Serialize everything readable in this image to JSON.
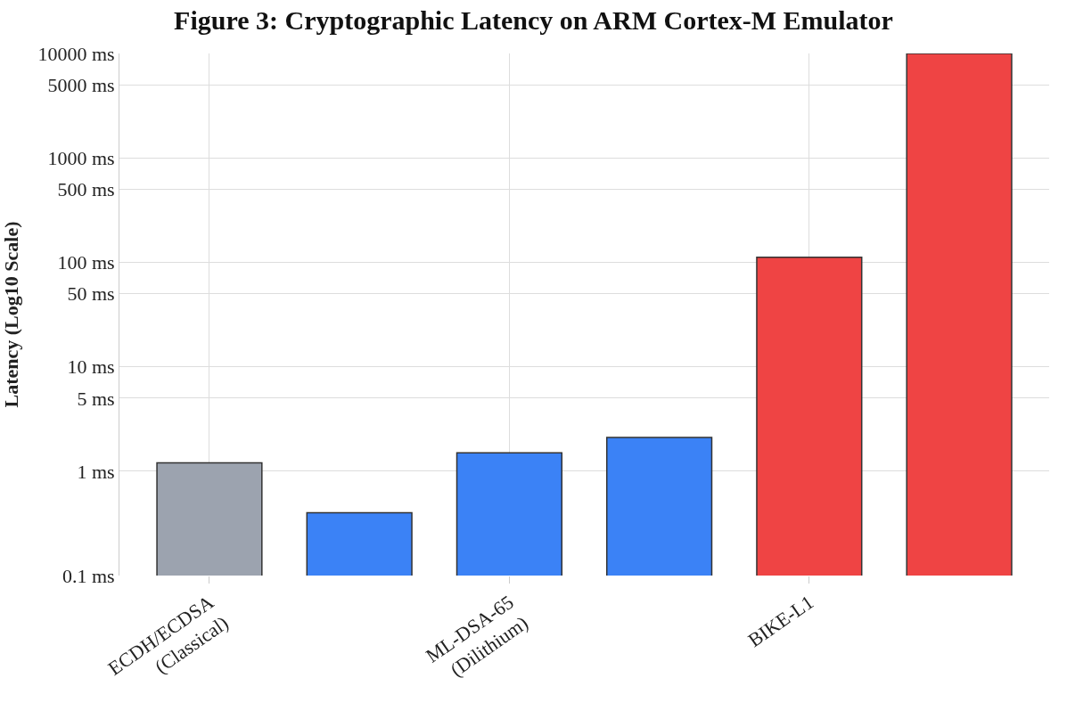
{
  "chart_data": {
    "type": "bar",
    "title": "Figure 3: Cryptographic Latency on ARM Cortex-M Emulator",
    "ylabel": "Latency (Log10 Scale)",
    "categories": [
      "ECDH/ECDSA\n(Classical)",
      null,
      "ML-DSA-65\n(Dilithium)",
      null,
      "BIKE-L1",
      null
    ],
    "values": [
      1.2,
      0.4,
      1.5,
      2.1,
      112,
      10000
    ],
    "colors": [
      "#9ca3af",
      "#3b82f6",
      "#3b82f6",
      "#3b82f6",
      "#ef4444",
      "#ef4444"
    ],
    "log": "y",
    "ylim": [
      0.1,
      10000
    ],
    "yticks": [
      {
        "value": 0.1,
        "label": "0.1 ms"
      },
      {
        "value": 1,
        "label": "1 ms"
      },
      {
        "value": 5,
        "label": "5 ms"
      },
      {
        "value": 10,
        "label": "10 ms"
      },
      {
        "value": 50,
        "label": "50 ms"
      },
      {
        "value": 100,
        "label": "100 ms"
      },
      {
        "value": 500,
        "label": "500 ms"
      },
      {
        "value": 1000,
        "label": "1000 ms"
      },
      {
        "value": 5000,
        "label": "5000 ms"
      },
      {
        "value": 10000,
        "label": "10000 ms"
      }
    ],
    "grid": true
  }
}
